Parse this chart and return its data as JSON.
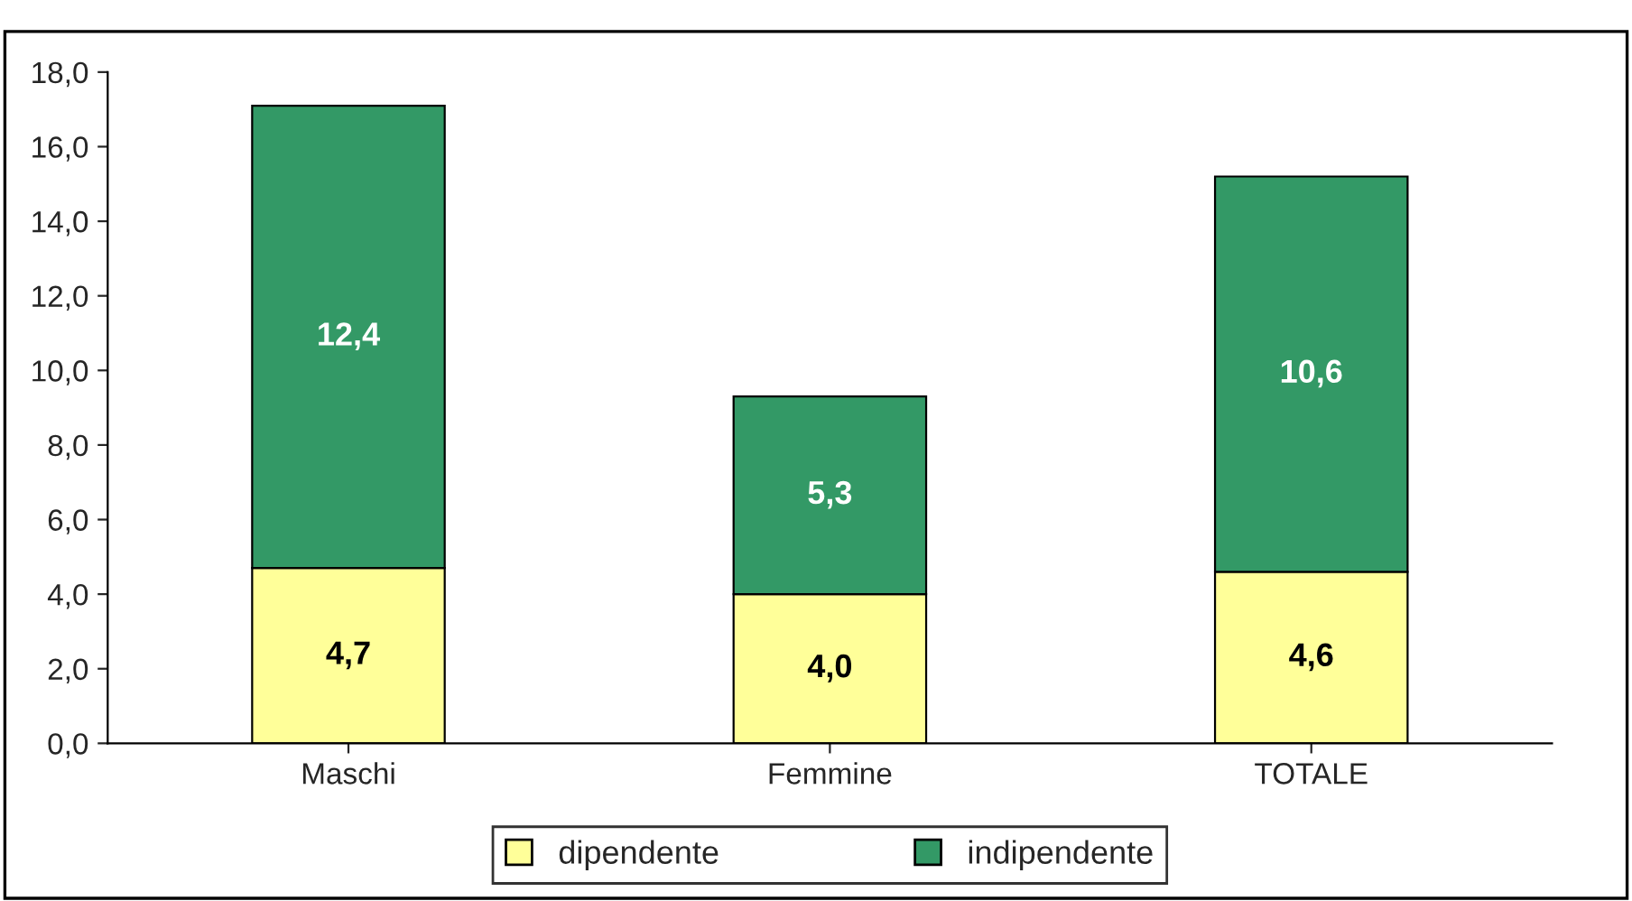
{
  "chart_data": {
    "type": "bar",
    "stacked": true,
    "categories": [
      "Maschi",
      "Femmine",
      "TOTALE"
    ],
    "series": [
      {
        "name": "dipendente",
        "color": "#ffff99",
        "values": [
          4.7,
          4.0,
          4.6
        ],
        "value_labels": [
          "4,7",
          "4,0",
          "4,6"
        ]
      },
      {
        "name": "indipendente",
        "color": "#339966",
        "values": [
          12.4,
          5.3,
          10.6
        ],
        "value_labels": [
          "12,4",
          "5,3",
          "10,6"
        ]
      }
    ],
    "ylim": [
      0,
      18
    ],
    "yticks": [
      {
        "value": 0,
        "label": "0,0"
      },
      {
        "value": 2,
        "label": "2,0"
      },
      {
        "value": 4,
        "label": "4,0"
      },
      {
        "value": 6,
        "label": "6,0"
      },
      {
        "value": 8,
        "label": "8,0"
      },
      {
        "value": 10,
        "label": "10,0"
      },
      {
        "value": 12,
        "label": "12,0"
      },
      {
        "value": 14,
        "label": "14,0"
      },
      {
        "value": 16,
        "label": "16,0"
      },
      {
        "value": 18,
        "label": "18,0"
      }
    ],
    "grid": false,
    "legend": "bottom"
  }
}
